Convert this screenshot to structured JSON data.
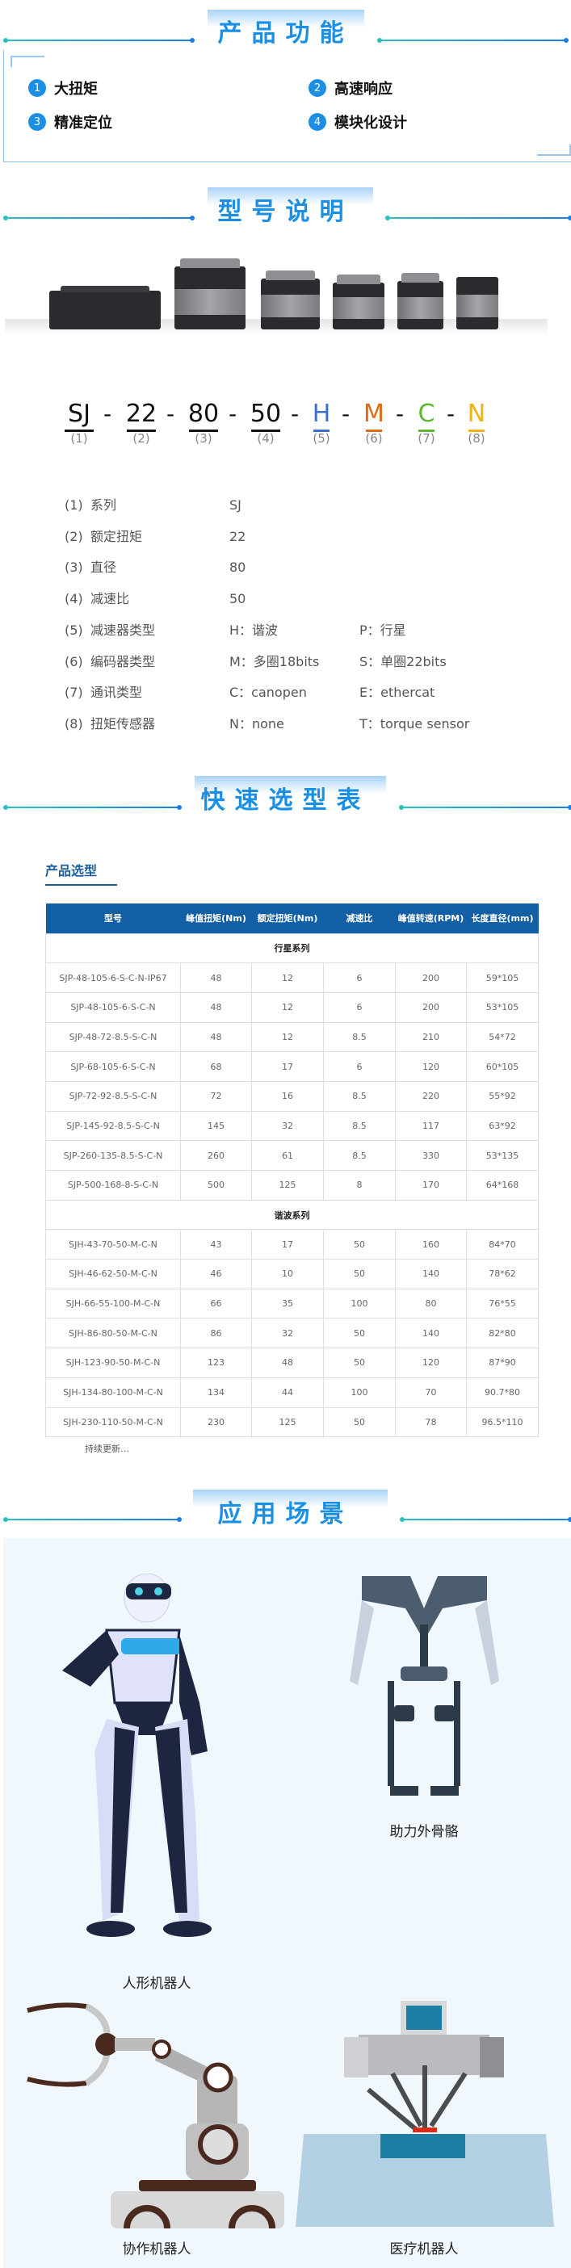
{
  "sections": {
    "features_title": "产品功能",
    "model_title": "型号说明",
    "selection_title": "快速选型表",
    "application_title": "应用场景"
  },
  "features": [
    {
      "num": "1",
      "label": "大扭矩"
    },
    {
      "num": "2",
      "label": "高速响应"
    },
    {
      "num": "3",
      "label": "精准定位"
    },
    {
      "num": "4",
      "label": "模块化设计"
    }
  ],
  "model_code": {
    "parts": [
      {
        "text": "SJ",
        "index": "(1)",
        "color": "#111111"
      },
      {
        "text": "22",
        "index": "(2)",
        "color": "#111111"
      },
      {
        "text": "80",
        "index": "(3)",
        "color": "#111111"
      },
      {
        "text": "50",
        "index": "(4)",
        "color": "#111111"
      },
      {
        "text": "H",
        "index": "(5)",
        "color": "#3b6fd6"
      },
      {
        "text": "M",
        "index": "(6)",
        "color": "#e06a12"
      },
      {
        "text": "C",
        "index": "(7)",
        "color": "#5cb82e"
      },
      {
        "text": "N",
        "index": "(8)",
        "color": "#f2b20f"
      }
    ],
    "separator": "-"
  },
  "spec_list": [
    {
      "index": "(1)",
      "name": "系列",
      "value": "SJ",
      "alt": ""
    },
    {
      "index": "(2)",
      "name": "额定扭矩",
      "value": "22",
      "alt": ""
    },
    {
      "index": "(3)",
      "name": "直径",
      "value": "80",
      "alt": ""
    },
    {
      "index": "(4)",
      "name": "减速比",
      "value": "50",
      "alt": ""
    },
    {
      "index": "(5)",
      "name": "减速器类型",
      "value": "H：谐波",
      "alt": "P：行星"
    },
    {
      "index": "(6)",
      "name": "编码器类型",
      "value": "M：多圈18bits",
      "alt": "S：单圈22bits"
    },
    {
      "index": "(7)",
      "name": "通讯类型",
      "value": "C：canopen",
      "alt": "E：ethercat"
    },
    {
      "index": "(8)",
      "name": "扭矩传感器",
      "value": "N：none",
      "alt": "T：torque sensor"
    }
  ],
  "selection": {
    "subtitle": "产品选型",
    "headers": [
      "型号",
      "峰值扭矩(Nm)",
      "额定扭矩(Nm)",
      "减速比",
      "峰值转速(RPM)",
      "长度直径(mm)"
    ],
    "groups": [
      {
        "name": "行星系列",
        "rows": [
          [
            "SJP-48-105-6-S-C-N-IP67",
            "48",
            "12",
            "6",
            "200",
            "59*105"
          ],
          [
            "SJP-48-105-6-S-C-N",
            "48",
            "12",
            "6",
            "200",
            "53*105"
          ],
          [
            "SJP-48-72-8.5-S-C-N",
            "48",
            "12",
            "8.5",
            "210",
            "54*72"
          ],
          [
            "SJP-68-105-6-S-C-N",
            "68",
            "17",
            "6",
            "120",
            "60*105"
          ],
          [
            "SJP-72-92-8.5-S-C-N",
            "72",
            "16",
            "8.5",
            "220",
            "55*92"
          ],
          [
            "SJP-145-92-8.5-S-C-N",
            "145",
            "32",
            "8.5",
            "117",
            "63*92"
          ],
          [
            "SJP-260-135-8.5-S-C-N",
            "260",
            "61",
            "8.5",
            "330",
            "53*135"
          ],
          [
            "SJP-500-168-8-S-C-N",
            "500",
            "125",
            "8",
            "170",
            "64*168"
          ]
        ]
      },
      {
        "name": "谐波系列",
        "rows": [
          [
            "SJH-43-70-50-M-C-N",
            "43",
            "17",
            "50",
            "160",
            "84*70"
          ],
          [
            "SJH-46-62-50-M-C-N",
            "46",
            "10",
            "50",
            "140",
            "78*62"
          ],
          [
            "SJH-66-55-100-M-C-N",
            "66",
            "35",
            "100",
            "80",
            "76*55"
          ],
          [
            "SJH-86-80-50-M-C-N",
            "86",
            "32",
            "50",
            "140",
            "82*80"
          ],
          [
            "SJH-123-90-50-M-C-N",
            "123",
            "48",
            "50",
            "120",
            "87*90"
          ],
          [
            "SJH-134-80-100-M-C-N",
            "134",
            "44",
            "100",
            "70",
            "90.7*80"
          ],
          [
            "SJH-230-110-50-M-C-N",
            "230",
            "125",
            "50",
            "78",
            "96.5*110"
          ]
        ]
      }
    ],
    "footer": "持续更新…"
  },
  "applications": [
    {
      "label": "人形机器人"
    },
    {
      "label": "助力外骨骼"
    },
    {
      "label": "协作机器人"
    },
    {
      "label": "医疗机器人"
    }
  ],
  "colors": {
    "accent": "#1a8fe3",
    "table_header": "#135fa6"
  }
}
